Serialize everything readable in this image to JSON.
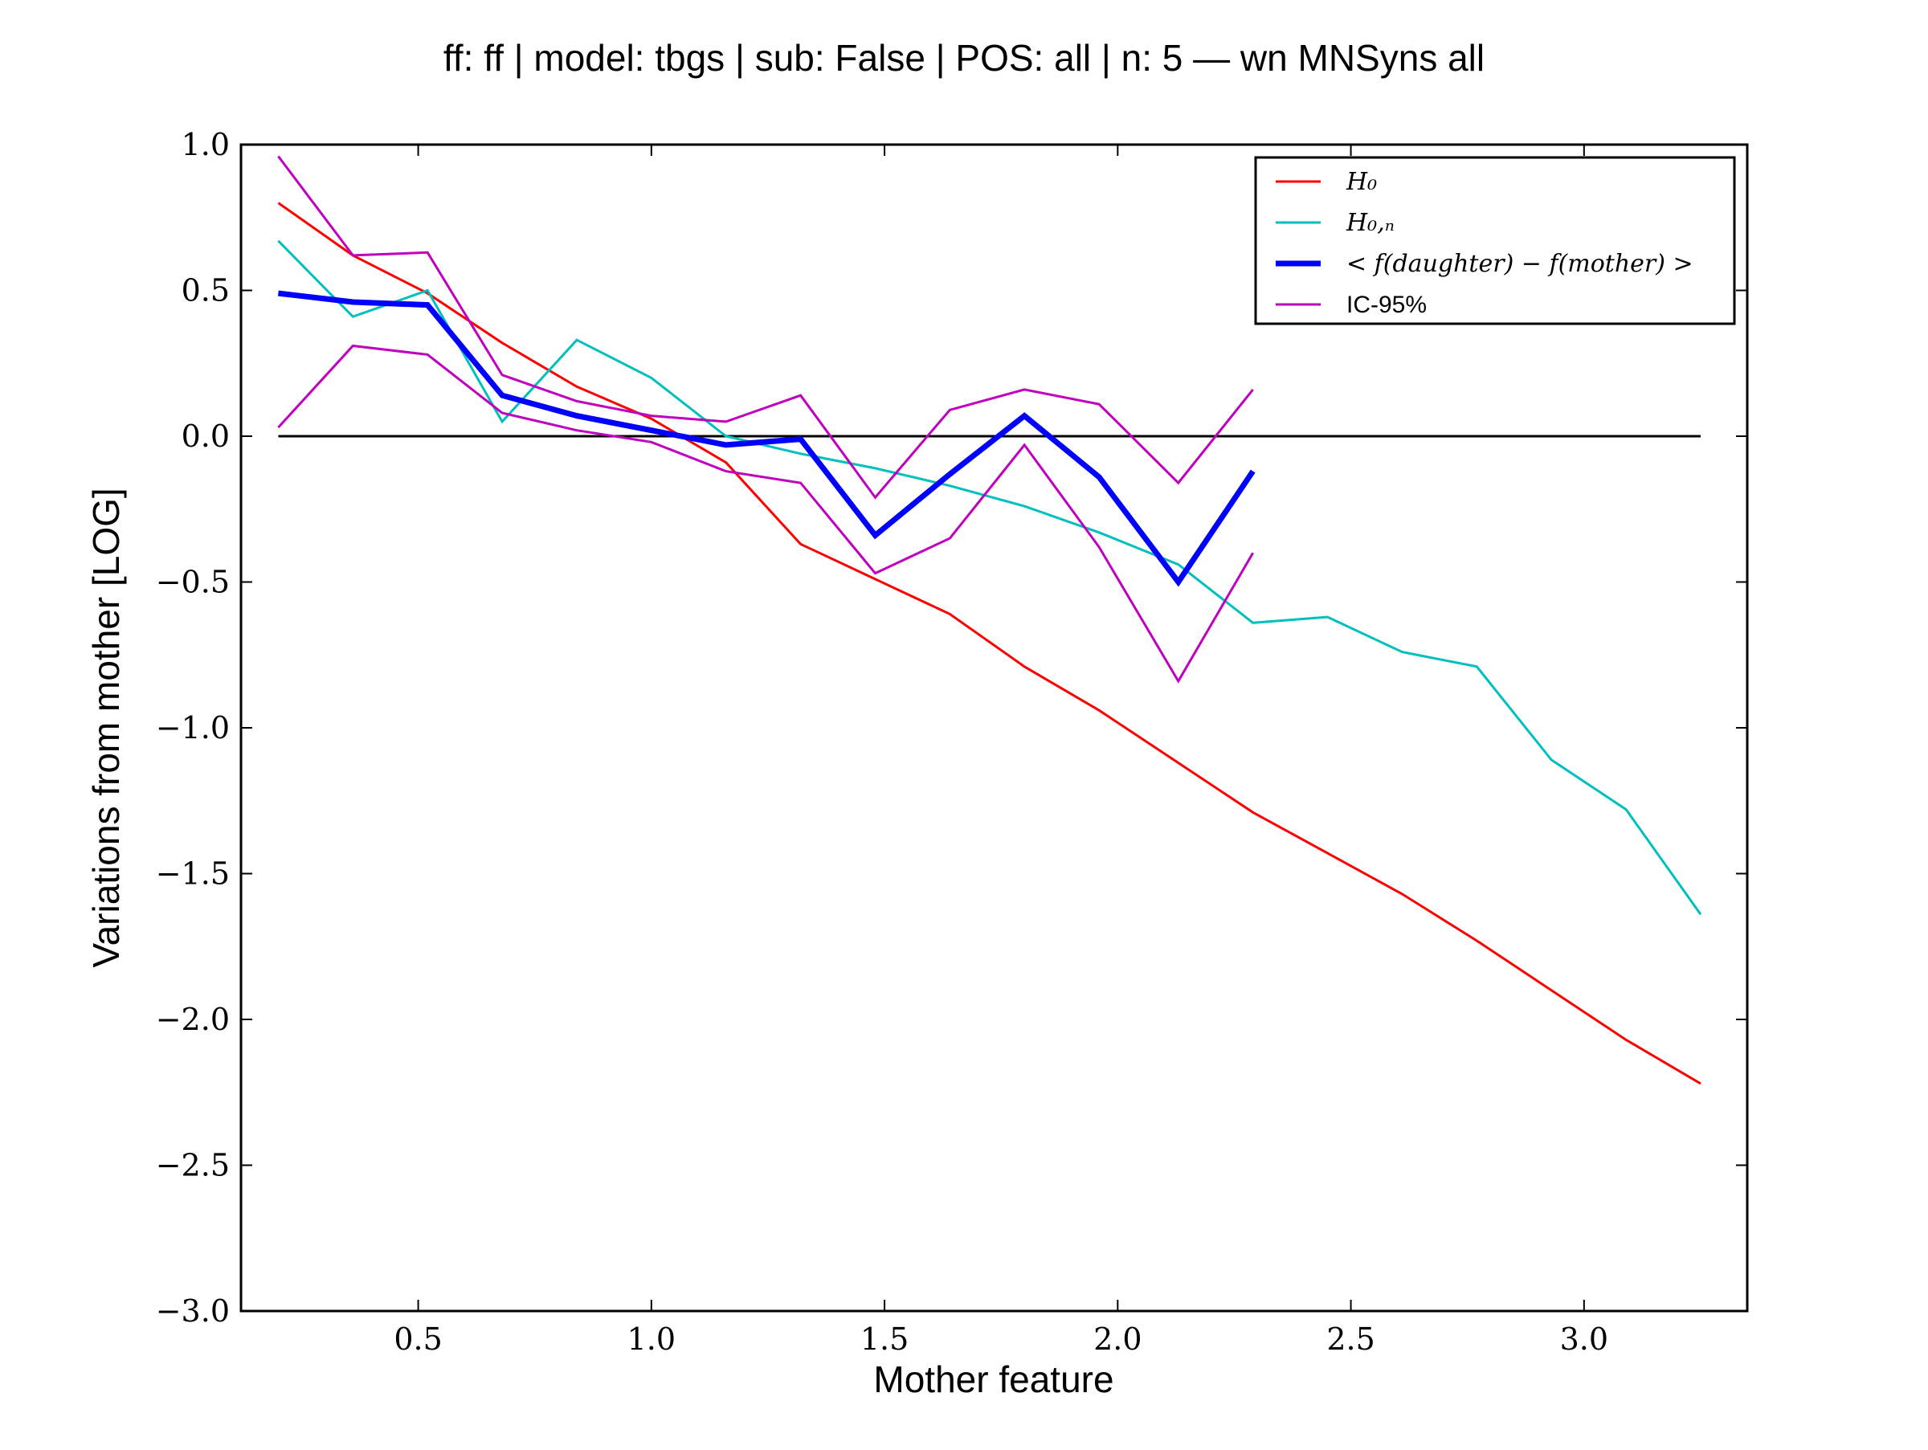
{
  "chart_data": {
    "type": "line",
    "title": "ff: ff | model: tbgs | sub: False | POS: all | n: 5 — wn MNSyns all",
    "xlabel": "Mother feature",
    "ylabel": "Variations from mother [LOG]",
    "xlim": [
      0.12,
      3.35
    ],
    "ylim": [
      -3.0,
      1.0
    ],
    "xticks": [
      0.5,
      1.0,
      1.5,
      2.0,
      2.5,
      3.0
    ],
    "xtick_labels": [
      "0.5",
      "1.0",
      "1.5",
      "2.0",
      "2.5",
      "3.0"
    ],
    "yticks": [
      1.0,
      0.5,
      0.0,
      -0.5,
      -1.0,
      -1.5,
      -2.0,
      -2.5,
      -3.0
    ],
    "ytick_labels": [
      "1.0",
      "0.5",
      "0.0",
      "−0.5",
      "−1.0",
      "−1.5",
      "−2.0",
      "−2.5",
      "−3.0"
    ],
    "grid": false,
    "legend_position": "top-right",
    "reference_line": {
      "y": 0.0,
      "x_from": 0.2,
      "x_to": 3.25,
      "color": "#000000"
    },
    "series": [
      {
        "name": "H₀",
        "color": "#ff0000",
        "x": [
          0.2,
          0.36,
          0.52,
          0.68,
          0.84,
          1.0,
          1.16,
          1.32,
          1.48,
          1.64,
          1.8,
          1.96,
          2.13,
          2.29,
          2.45,
          2.61,
          2.77,
          2.93,
          3.09,
          3.25
        ],
        "y": [
          0.8,
          0.62,
          0.49,
          0.32,
          0.17,
          0.06,
          -0.09,
          -0.37,
          -0.49,
          -0.61,
          -0.79,
          -0.94,
          -1.12,
          -1.29,
          -1.43,
          -1.57,
          -1.73,
          -1.9,
          -2.07,
          -2.22
        ]
      },
      {
        "name": "H₀,ₙ",
        "color": "#00bfbf",
        "x": [
          0.2,
          0.36,
          0.52,
          0.68,
          0.84,
          1.0,
          1.16,
          1.32,
          1.48,
          1.64,
          1.8,
          1.96,
          2.13,
          2.29,
          2.45,
          2.61,
          2.77,
          2.93,
          3.09,
          3.25
        ],
        "y": [
          0.67,
          0.41,
          0.5,
          0.05,
          0.33,
          0.2,
          0.0,
          -0.06,
          -0.11,
          -0.17,
          -0.24,
          -0.33,
          -0.44,
          -0.64,
          -0.62,
          -0.74,
          -0.79,
          -1.11,
          -1.28,
          -1.64
        ]
      },
      {
        "name": "< f(daughter) − f(mother) >",
        "color": "#0000ff",
        "x": [
          0.2,
          0.36,
          0.52,
          0.68,
          0.84,
          1.0,
          1.16,
          1.32,
          1.48,
          1.64,
          1.8,
          1.96,
          2.13,
          2.29
        ],
        "y": [
          0.49,
          0.46,
          0.45,
          0.14,
          0.07,
          0.02,
          -0.03,
          -0.01,
          -0.34,
          -0.13,
          0.07,
          -0.14,
          -0.5,
          -0.12
        ]
      },
      {
        "name": "IC-95%",
        "color": "#bf00bf",
        "x": [
          0.2,
          0.36,
          0.52,
          0.68,
          0.84,
          1.0,
          1.16,
          1.32,
          1.48,
          1.64,
          1.8,
          1.96,
          2.13,
          2.29
        ],
        "y": [
          0.96,
          0.62,
          0.63,
          0.21,
          0.12,
          0.07,
          0.05,
          0.14,
          -0.21,
          0.09,
          0.16,
          0.11,
          -0.16,
          0.16
        ]
      },
      {
        "legend": false,
        "color": "#bf00bf",
        "x": [
          0.2,
          0.36,
          0.52,
          0.68,
          0.84,
          1.0,
          1.16,
          1.32,
          1.48,
          1.64,
          1.8,
          1.96,
          2.13,
          2.29
        ],
        "y": [
          0.03,
          0.31,
          0.28,
          0.08,
          0.02,
          -0.02,
          -0.12,
          -0.16,
          -0.47,
          -0.35,
          -0.03,
          -0.38,
          -0.84,
          -0.4
        ]
      }
    ]
  }
}
